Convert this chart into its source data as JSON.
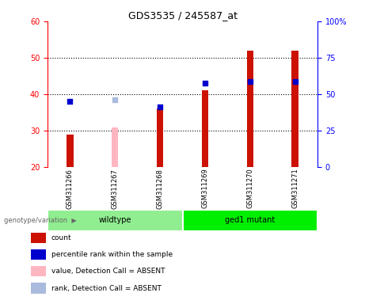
{
  "title": "GDS3535 / 245587_at",
  "samples": [
    "GSM311266",
    "GSM311267",
    "GSM311268",
    "GSM311269",
    "GSM311270",
    "GSM311271"
  ],
  "groups": [
    {
      "label": "wildtype",
      "color": "#90EE90",
      "start": 0,
      "end": 2
    },
    {
      "label": "ged1 mutant",
      "color": "#00EE00",
      "start": 3,
      "end": 5
    }
  ],
  "count_values": [
    29.0,
    null,
    36.0,
    41.0,
    52.0,
    52.0
  ],
  "count_absent_values": [
    null,
    31.0,
    null,
    null,
    null,
    null
  ],
  "rank_values": [
    38.0,
    null,
    36.5,
    43.0,
    43.5,
    43.5
  ],
  "rank_absent_values": [
    null,
    38.5,
    null,
    null,
    null,
    null
  ],
  "ylim_left": [
    20,
    60
  ],
  "ylim_right": [
    0,
    100
  ],
  "left_ticks": [
    20,
    30,
    40,
    50,
    60
  ],
  "right_ticks": [
    0,
    25,
    50,
    75,
    100
  ],
  "right_tick_labels": [
    "0",
    "25",
    "50",
    "75",
    "100%"
  ],
  "color_count": "#CC1100",
  "color_rank": "#0000CC",
  "color_count_absent": "#FFB6C1",
  "color_rank_absent": "#AABBDD",
  "bar_width": 0.15,
  "dot_size": 25,
  "legend_items": [
    {
      "color": "#CC1100",
      "label": "count"
    },
    {
      "color": "#0000CC",
      "label": "percentile rank within the sample"
    },
    {
      "color": "#FFB6C1",
      "label": "value, Detection Call = ABSENT"
    },
    {
      "color": "#AABBDD",
      "label": "rank, Detection Call = ABSENT"
    }
  ],
  "group_label_text": "genotype/variation",
  "background_label": "#C8C8C8",
  "grid_ticks": [
    30,
    40,
    50
  ],
  "left_axis_color": "red",
  "right_axis_color": "blue"
}
